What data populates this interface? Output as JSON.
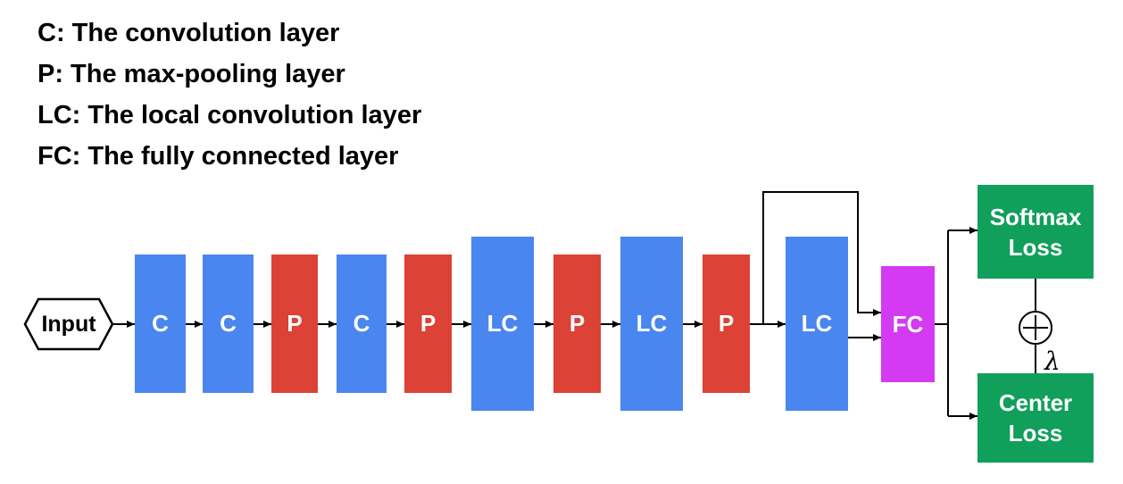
{
  "legend": {
    "c": "C: The convolution layer",
    "p": "P: The max-pooling layer",
    "lc": "LC: The local convolution layer",
    "fc": "FC: The fully connected layer"
  },
  "input_label": "Input",
  "layers": [
    "C",
    "C",
    "P",
    "C",
    "P",
    "LC",
    "P",
    "LC",
    "P",
    "LC",
    "FC"
  ],
  "losses": {
    "softmax": "Softmax Loss",
    "center": "Center Loss"
  },
  "combine_symbol": "+",
  "weight_symbol": "λ",
  "colors": {
    "convolution": "#4a86f0",
    "pooling": "#dc4236",
    "fully_connected": "#d43af2",
    "loss": "#119f5c"
  }
}
